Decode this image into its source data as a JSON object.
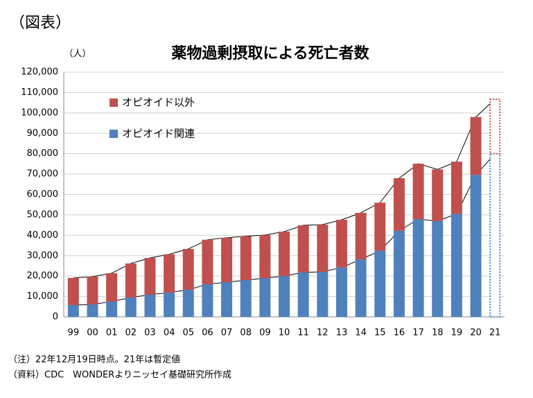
{
  "chart_data": {
    "type": "stacked_bar",
    "figure_label": "（図表）",
    "title": "薬物過剰摂取による死亡者数",
    "y_unit": "（人）",
    "categories": [
      "99",
      "00",
      "01",
      "02",
      "03",
      "04",
      "05",
      "06",
      "07",
      "08",
      "09",
      "10",
      "11",
      "12",
      "13",
      "14",
      "15",
      "16",
      "17",
      "18",
      "19",
      "20",
      "21"
    ],
    "series": [
      {
        "name": "オピオイド関連",
        "color": "#4f81bd",
        "values": [
          5800,
          6100,
          7500,
          9500,
          10900,
          11900,
          13300,
          16000,
          17000,
          18000,
          19000,
          20000,
          21800,
          22100,
          24200,
          28200,
          32400,
          42200,
          47900,
          47000,
          50500,
          69600,
          80000
        ]
      },
      {
        "name": "オピオイド以外",
        "color": "#c0504d",
        "values": [
          13300,
          13600,
          13900,
          16700,
          18000,
          18800,
          20000,
          21800,
          21800,
          21500,
          21100,
          21800,
          23100,
          23100,
          23400,
          22800,
          23600,
          25800,
          27200,
          25300,
          25600,
          28400,
          26700
        ]
      }
    ],
    "last_bar_outline_only": true,
    "connect_tops": true,
    "ylim": [
      0,
      120000
    ],
    "yticks": [
      0,
      {
        "value": 10000,
        "label": "10,000"
      },
      {
        "value": 20000,
        "label": "20,000"
      },
      {
        "value": 30000,
        "label": "30,000"
      },
      {
        "value": 40000,
        "label": "40,000"
      },
      {
        "value": 50000,
        "label": "50,000"
      },
      {
        "value": 60000,
        "label": "60,000"
      },
      {
        "value": 70000,
        "label": "70,000"
      },
      {
        "value": 80000,
        "label": "80,000"
      },
      {
        "value": 90000,
        "label": "90,000"
      },
      {
        "value": 100000,
        "label": "100,000"
      },
      {
        "value": 110000,
        "label": "110,000"
      },
      {
        "value": 120000,
        "label": "120,000"
      }
    ],
    "grid": true,
    "notes": [
      "（注）22年12月19日時点。21年は暫定値",
      "（資料）CDC　WONDERよりニッセイ基礎研究所作成"
    ]
  }
}
